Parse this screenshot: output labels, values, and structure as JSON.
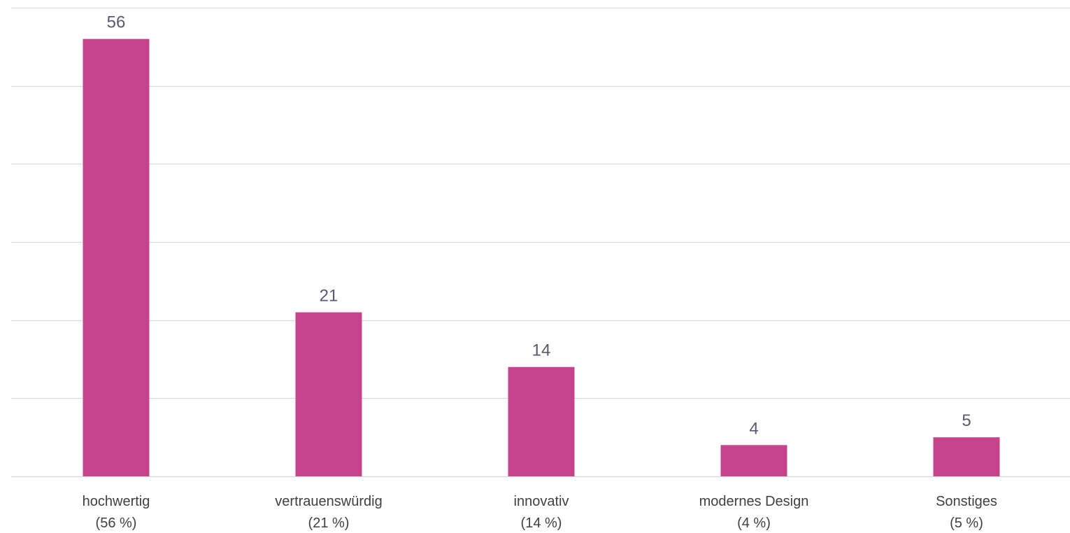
{
  "chart_data": {
    "type": "bar",
    "categories": [
      {
        "name": "hochwertig",
        "percent_label": "(56 %)"
      },
      {
        "name": "vertrauenswürdig",
        "percent_label": "(21 %)"
      },
      {
        "name": "innovativ",
        "percent_label": "(14 %)"
      },
      {
        "name": "modernes Design",
        "percent_label": "(4 %)"
      },
      {
        "name": "Sonstiges",
        "percent_label": "(5 %)"
      }
    ],
    "values": [
      56,
      21,
      14,
      4,
      5
    ],
    "ylim": [
      0,
      60
    ],
    "grid_step": 10,
    "grid": true,
    "legend": "none",
    "bar_color": "#c6438e",
    "title": "",
    "xlabel": "",
    "ylabel": ""
  }
}
